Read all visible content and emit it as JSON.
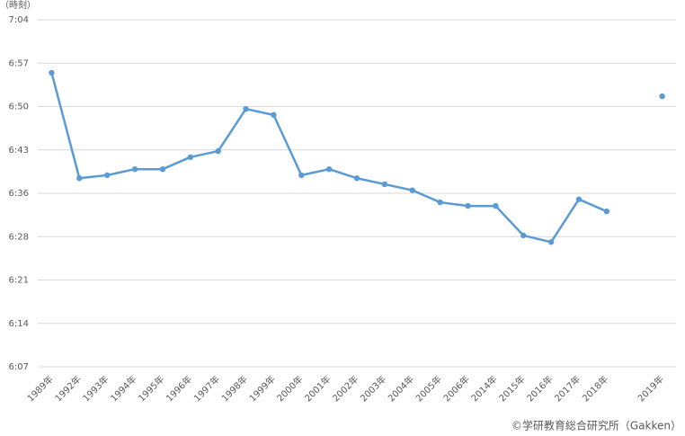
{
  "chart_data": {
    "type": "line",
    "y_label": "（時刻）",
    "source": "©学研教育総合研究所（Gakken）",
    "categories": [
      "1989年",
      "1992年",
      "1993年",
      "1994年",
      "1995年",
      "1996年",
      "1997年",
      "1998年",
      "1999年",
      "2000年",
      "2001年",
      "2002年",
      "2003年",
      "2004年",
      "2005年",
      "2006年",
      "2014年",
      "2015年",
      "2016年",
      "2017年",
      "2018年",
      null,
      "2019年"
    ],
    "series": [
      {
        "color": "#5b9bd5",
        "values": [
          416.0,
          398.5,
          399.0,
          400.0,
          400.0,
          402.0,
          403.0,
          410.0,
          409.0,
          399.0,
          400.0,
          398.5,
          397.5,
          396.5,
          394.5,
          393.9,
          393.9,
          389.0,
          387.9,
          395.0,
          393.0,
          null,
          412.1
        ]
      }
    ],
    "ylim": [
      367.2,
      424.8
    ],
    "yticks": [
      {
        "value": 367.2,
        "label": "6:07"
      },
      {
        "value": 374.4,
        "label": "6:14"
      },
      {
        "value": 381.6,
        "label": "6:21"
      },
      {
        "value": 388.8,
        "label": "6:28"
      },
      {
        "value": 396.0,
        "label": "6:36"
      },
      {
        "value": 403.2,
        "label": "6:43"
      },
      {
        "value": 410.4,
        "label": "6:50"
      },
      {
        "value": 417.6,
        "label": "6:57"
      },
      {
        "value": 424.8,
        "label": "7:04"
      }
    ],
    "grid": true
  }
}
